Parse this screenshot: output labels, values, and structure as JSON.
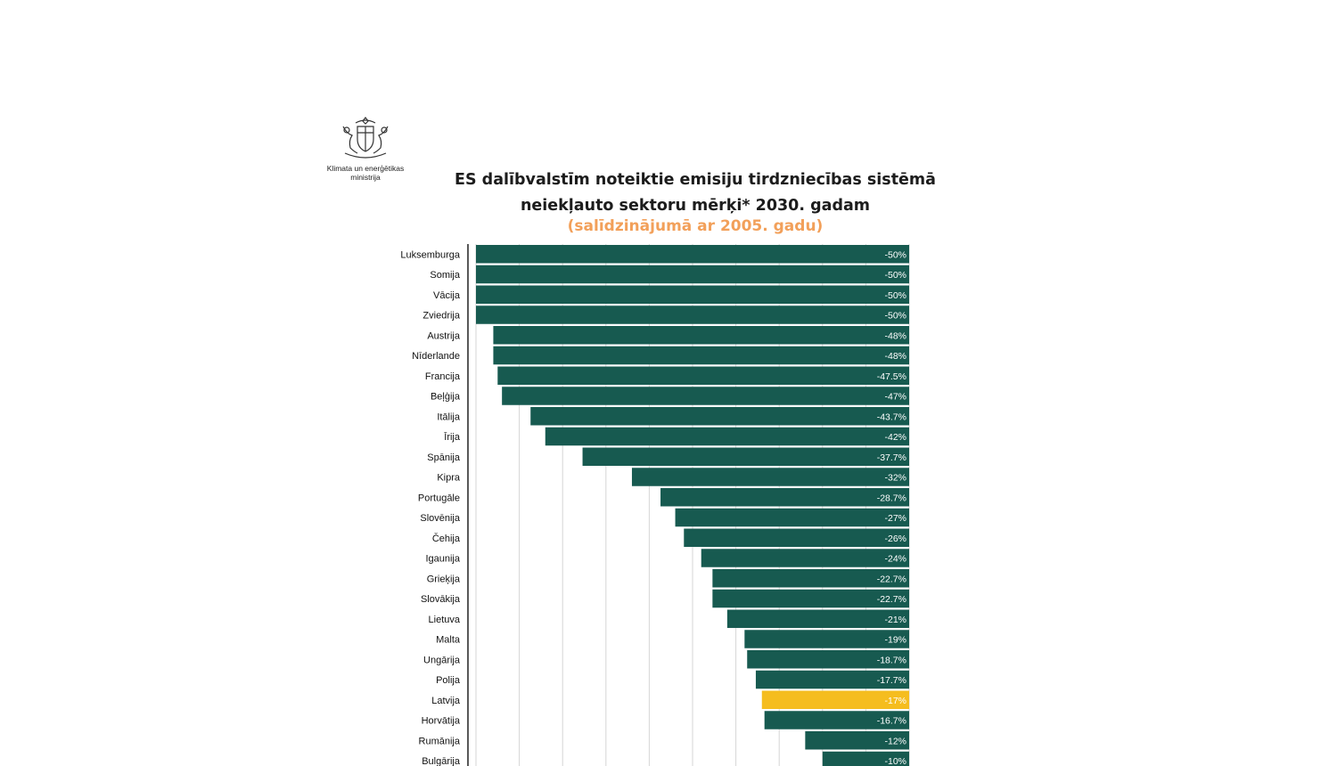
{
  "logo": {
    "line1": "Klimata un enerģētikas",
    "line2": "ministrija"
  },
  "colors": {
    "bar": "#175a50",
    "highlight": "#f5bd1f",
    "gridline": "#d6d6d6",
    "axis": "#222222",
    "subtitle": "#f2a05a"
  },
  "chart_data": {
    "type": "bar",
    "orientation": "horizontal",
    "title_line1": "ES dalībvalstīm noteiktie emisiju tirdzniecības sistēmā",
    "title_line2": "neiekļauto sektoru mērķi* 2030. gadam",
    "subtitle": "(salīdzinājumā ar 2005. gadu)",
    "xlim": [
      -50,
      0
    ],
    "highlight_category": "Latvija",
    "categories": [
      "Luksemburga",
      "Somija",
      "Vācija",
      "Zviedrija",
      "Austrija",
      "Nīderlande",
      "Francija",
      "Beļģija",
      "Itālija",
      "Īrija",
      "Spānija",
      "Kipra",
      "Portugāle",
      "Slovēnija",
      "Čehija",
      "Igaunija",
      "Grieķija",
      "Slovākija",
      "Lietuva",
      "Malta",
      "Ungārija",
      "Polija",
      "Latvija",
      "Horvātija",
      "Rumānija",
      "Bulgārija"
    ],
    "values": [
      -50,
      -50,
      -50,
      -50,
      -48,
      -48,
      -47.5,
      -47,
      -43.7,
      -42,
      -37.7,
      -32,
      -28.7,
      -27,
      -26,
      -24,
      -22.7,
      -22.7,
      -21,
      -19,
      -18.7,
      -17.7,
      -17,
      -16.7,
      -12,
      -10
    ],
    "value_labels": [
      "-50%",
      "-50%",
      "-50%",
      "-50%",
      "-48%",
      "-48%",
      "-47.5%",
      "-47%",
      "-43.7%",
      "-42%",
      "-37.7%",
      "-32%",
      "-28.7%",
      "-27%",
      "-26%",
      "-24%",
      "-22.7%",
      "-22.7%",
      "-21%",
      "-19%",
      "-18.7%",
      "-17.7%",
      "-17%",
      "-16.7%",
      "-12%",
      "-10%"
    ]
  }
}
